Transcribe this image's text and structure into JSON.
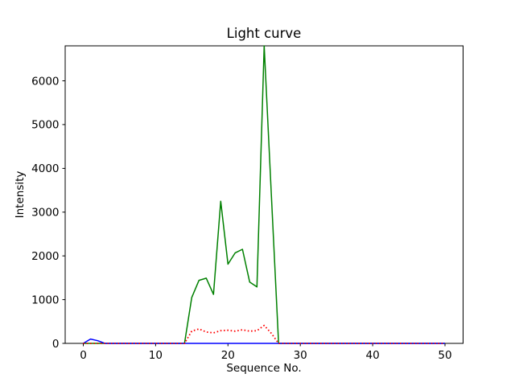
{
  "figure": {
    "background": "#ffffff",
    "text_color": "#000000",
    "spine_color": "#000000"
  },
  "chart_data": {
    "type": "line",
    "title": "Light curve",
    "xlabel": "Sequence No.",
    "ylabel": "Intensity",
    "xlim": [
      -2.5,
      52.5
    ],
    "ylim": [
      0,
      6800
    ],
    "xticks": [
      0,
      10,
      20,
      30,
      40,
      50
    ],
    "yticks": [
      0,
      1000,
      2000,
      3000,
      4000,
      5000,
      6000
    ],
    "grid": false,
    "legend_position": "none",
    "x": [
      0,
      1,
      2,
      3,
      4,
      5,
      6,
      7,
      8,
      9,
      10,
      11,
      12,
      13,
      14,
      15,
      16,
      17,
      18,
      19,
      20,
      21,
      22,
      23,
      24,
      25,
      26,
      27,
      28,
      29,
      30,
      31,
      32,
      33,
      34,
      35,
      36,
      37,
      38,
      39,
      40,
      41,
      42,
      43,
      44,
      45,
      46,
      47,
      48,
      49,
      50
    ],
    "series": [
      {
        "name": "green-series",
        "color": "#008000",
        "linestyle": "solid",
        "values": [
          0,
          0,
          0,
          0,
          0,
          0,
          0,
          0,
          0,
          0,
          0,
          0,
          0,
          0,
          0,
          1050,
          1440,
          1490,
          1120,
          3250,
          1810,
          2070,
          2150,
          1400,
          1290,
          6800,
          3400,
          0,
          0,
          0,
          0,
          0,
          0,
          0,
          0,
          0,
          0,
          0,
          0,
          0,
          0,
          0,
          0,
          0,
          0,
          0,
          0,
          0,
          0,
          0,
          0
        ]
      },
      {
        "name": "blue-series",
        "color": "#0000ff",
        "linestyle": "solid",
        "values": [
          0,
          100,
          60,
          0,
          0,
          0,
          0,
          0,
          0,
          0,
          0,
          0,
          0,
          0,
          0,
          0,
          0,
          0,
          0,
          0,
          0,
          0,
          0,
          0,
          0,
          0,
          0,
          0,
          0,
          0,
          0,
          0,
          0,
          0,
          0,
          0,
          0,
          0,
          0,
          0,
          0,
          0,
          0,
          0,
          0,
          0,
          0,
          0,
          0,
          0,
          0
        ]
      },
      {
        "name": "red-series",
        "color": "#ff0000",
        "linestyle": "dotted",
        "values": [
          0,
          0,
          0,
          0,
          0,
          0,
          0,
          0,
          0,
          0,
          0,
          0,
          0,
          0,
          0,
          280,
          330,
          260,
          240,
          290,
          300,
          280,
          310,
          280,
          290,
          410,
          230,
          0,
          0,
          0,
          0,
          0,
          0,
          0,
          0,
          0,
          0,
          0,
          0,
          0,
          0,
          0,
          0,
          0,
          0,
          0,
          0,
          0,
          0,
          0,
          0
        ]
      }
    ]
  }
}
